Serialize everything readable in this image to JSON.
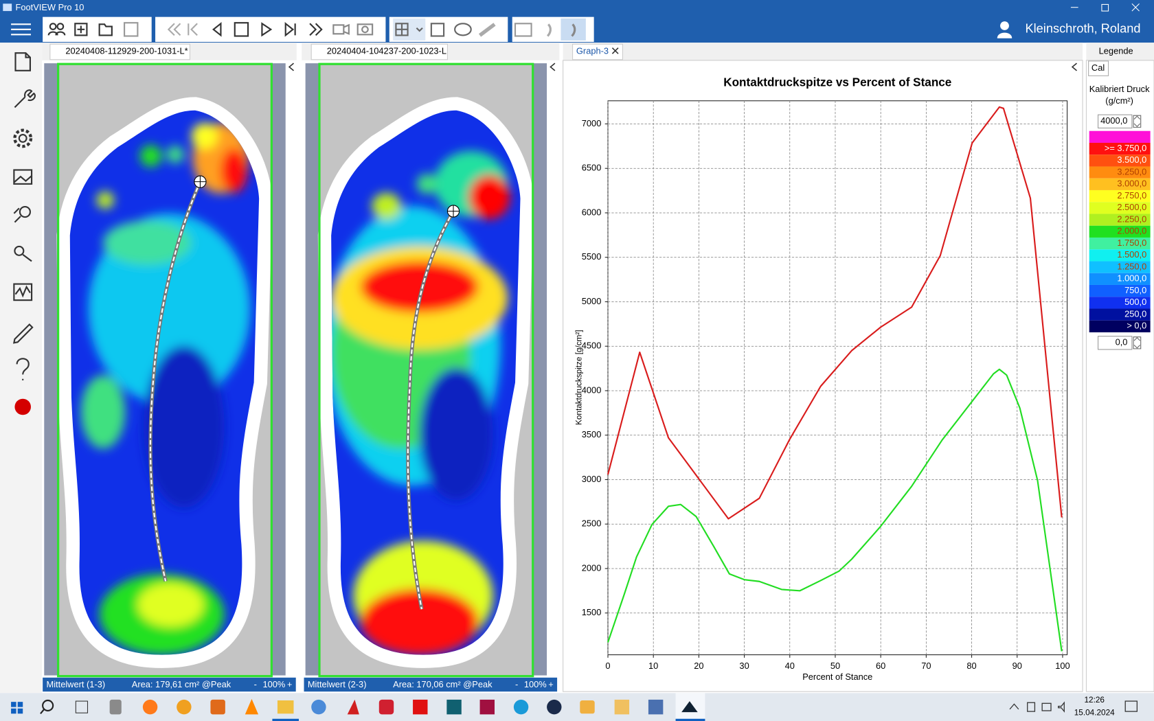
{
  "window": {
    "title": "FootVIEW Pro 10"
  },
  "user": "Kleinschroth, Roland",
  "tabs": [
    "20240408-112929-200-1031-L*",
    "20240404-104237-200-1023-L",
    "Graph-3",
    "Legende"
  ],
  "views": [
    {
      "status": "Mittelwert (1-3)",
      "area": "Area: 179,61 cm² @Peak",
      "zoom_out": "-",
      "zoom": "100%",
      "zoom_in": "+"
    },
    {
      "status": "Mittelwert (2-3)",
      "area": "Area: 170,06 cm² @Peak",
      "zoom_out": "-",
      "zoom": "100%",
      "zoom_in": "+"
    }
  ],
  "chart_data": {
    "type": "line",
    "title": "Kontaktdruckspitze vs Percent of Stance",
    "xlabel": "Percent of Stance",
    "ylabel": "Kontaktdruckspitze [g/cm²]",
    "xlim": [
      0,
      101
    ],
    "xticks": [
      0,
      10,
      20,
      30,
      40,
      50,
      60,
      70,
      80,
      90,
      100
    ],
    "ylim": [
      1030,
      7260
    ],
    "yticks": [
      1500,
      2000,
      2500,
      3000,
      3500,
      4000,
      4500,
      5000,
      5500,
      6000,
      6500,
      7000
    ],
    "grid": true,
    "series": [
      {
        "color": "#d91c1c",
        "x": [
          0,
          7,
          13.3,
          26.5,
          33.3,
          40,
          46.8,
          53.6,
          60,
          66.8,
          73.1,
          80.1,
          86.1,
          87,
          92.9,
          99.8
        ],
        "values": [
          3057,
          4432,
          3471,
          2560,
          2790,
          3455,
          4050,
          4450,
          4715,
          4940,
          5520,
          6785,
          7190,
          7175,
          6165,
          2575
        ]
      },
      {
        "color": "#22dd22",
        "x": [
          0,
          3.6,
          6.3,
          9.7,
          13.3,
          16,
          19.4,
          23.3,
          26.7,
          30,
          33.3,
          38.2,
          42.2,
          46.8,
          50.8,
          53.6,
          59.9,
          66.8,
          73.5,
          80.1,
          84.8,
          86.1,
          87.7,
          90.6,
          94.5,
          99.8
        ],
        "values": [
          1170,
          1710,
          2130,
          2495,
          2700,
          2720,
          2585,
          2245,
          1940,
          1875,
          1855,
          1765,
          1750,
          1865,
          1970,
          2105,
          2470,
          2925,
          3445,
          3880,
          4190,
          4240,
          4175,
          3805,
          2990,
          1070
        ]
      }
    ]
  },
  "legend_panel": {
    "tab": "Cal",
    "title": [
      "Kalibriert Druck",
      "(g/cm²)"
    ],
    "max": "4000,0",
    "min": "0,0",
    "top_color": "#ff10d8",
    "scale": [
      {
        "label": ">= 3.750,0",
        "color": "#ff1010"
      },
      {
        "label": "3.500,0",
        "color": "#ff5010"
      },
      {
        "label": "3.250,0",
        "color": "#ff8c10"
      },
      {
        "label": "3.000,0",
        "color": "#ffc020"
      },
      {
        "label": "2.750,0",
        "color": "#ffff20"
      },
      {
        "label": "2.500,0",
        "color": "#e0ff20"
      },
      {
        "label": "2.250,0",
        "color": "#b0f020"
      },
      {
        "label": "2.000,0",
        "color": "#20e020"
      },
      {
        "label": "1.750,0",
        "color": "#40f0a0"
      },
      {
        "label": "1.500,0",
        "color": "#10f0f0"
      },
      {
        "label": "1.250,0",
        "color": "#10c0ff"
      },
      {
        "label": "1.000,0",
        "color": "#1090ff"
      },
      {
        "label": "750,0",
        "color": "#1060ff"
      },
      {
        "label": "500,0",
        "color": "#1030f0"
      },
      {
        "label": "250,0",
        "color": "#0010a0"
      },
      {
        "label": "> 0,0",
        "color": "#000060"
      }
    ]
  },
  "taskbar": {
    "time": "12:26",
    "date": "15.04.2024"
  }
}
